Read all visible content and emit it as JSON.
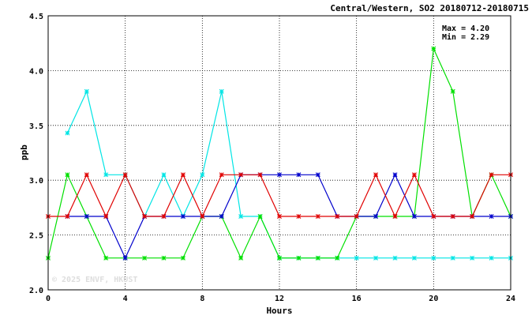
{
  "chart_data": {
    "type": "line",
    "title": "Central/Western, SO2 20180712-20180715",
    "xlabel": "Hours",
    "ylabel": "ppb",
    "xlim": [
      0,
      24
    ],
    "ylim": [
      2.0,
      4.5
    ],
    "x_ticks": [
      "0",
      "4",
      "8",
      "12",
      "16",
      "20",
      "24"
    ],
    "y_ticks": [
      "2.0",
      "2.5",
      "3.0",
      "3.5",
      "4.0",
      "4.5"
    ],
    "grid": "dotted",
    "annotations": {
      "max_label": "Max = 4.20",
      "min_label": "Min = 2.29"
    },
    "watermark": "© 2025 ENVF, HKUST",
    "series": [
      {
        "color": "#00e5e5",
        "x": [
          1,
          2,
          3,
          4,
          5,
          6,
          7,
          8,
          9,
          10,
          11,
          12,
          13,
          14,
          15,
          16,
          17,
          18,
          19,
          20,
          21,
          22,
          23,
          24
        ],
        "values": [
          3.43,
          3.81,
          3.05,
          3.05,
          2.67,
          3.05,
          2.67,
          3.05,
          3.81,
          2.67,
          2.67,
          2.29,
          2.29,
          2.29,
          2.29,
          2.29,
          2.29,
          2.29,
          2.29,
          2.29,
          2.29,
          2.29,
          2.29,
          2.29
        ]
      },
      {
        "color": "#00e000",
        "x": [
          0,
          1,
          2,
          3,
          4,
          5,
          6,
          7,
          8,
          9,
          10,
          11,
          12,
          13,
          14,
          15,
          16,
          17,
          18,
          19,
          20,
          21,
          22,
          23,
          24
        ],
        "values": [
          2.29,
          3.05,
          2.67,
          2.29,
          2.29,
          2.29,
          2.29,
          2.29,
          2.67,
          2.67,
          2.29,
          2.67,
          2.29,
          2.29,
          2.29,
          2.29,
          2.67,
          2.67,
          2.67,
          2.67,
          4.2,
          3.81,
          2.67,
          3.05,
          2.67
        ]
      },
      {
        "color": "#0000cc",
        "x": [
          1,
          2,
          3,
          4,
          5,
          6,
          7,
          8,
          9,
          10,
          11,
          12,
          13,
          14,
          15,
          16,
          17,
          18,
          19,
          20,
          21,
          22,
          23,
          24
        ],
        "values": [
          2.67,
          2.67,
          2.67,
          2.29,
          2.67,
          2.67,
          2.67,
          2.67,
          2.67,
          3.05,
          3.05,
          3.05,
          3.05,
          3.05,
          2.67,
          2.67,
          2.67,
          3.05,
          2.67,
          2.67,
          2.67,
          2.67,
          2.67,
          2.67
        ]
      },
      {
        "color": "#e00000",
        "x": [
          0,
          1,
          2,
          3,
          4,
          5,
          6,
          7,
          8,
          9,
          10,
          11,
          12,
          13,
          14,
          15,
          16,
          17,
          18,
          19,
          20,
          21,
          22,
          23,
          24
        ],
        "values": [
          2.67,
          2.67,
          3.05,
          2.67,
          3.05,
          2.67,
          2.67,
          3.05,
          2.67,
          3.05,
          3.05,
          3.05,
          2.67,
          2.67,
          2.67,
          2.67,
          2.67,
          3.05,
          2.67,
          3.05,
          2.67,
          2.67,
          2.67,
          3.05,
          3.05
        ]
      }
    ]
  }
}
